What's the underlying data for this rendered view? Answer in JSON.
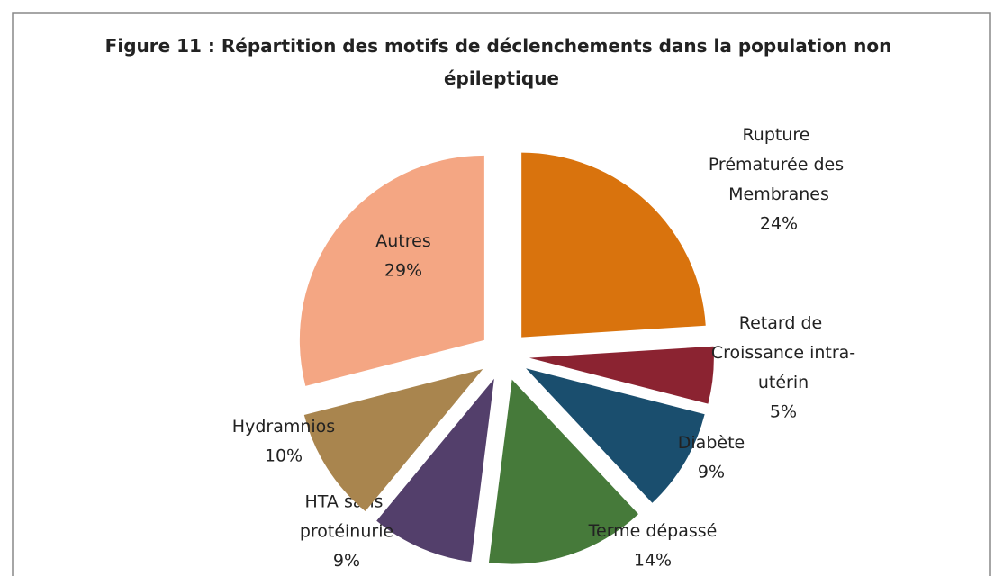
{
  "chart_data": {
    "type": "pie",
    "title": "Figure 11 : Répartition des motifs de déclenchements dans la population non épileptique",
    "categories": [
      "Rupture Prématurée des Membranes",
      "Retard de Croissance intra-utérin",
      "Diabète",
      "Terme dépassé",
      "HTA sans protéinurie",
      "Hydramnios",
      "Autres"
    ],
    "values": [
      24,
      5,
      9,
      14,
      9,
      10,
      29
    ],
    "value_labels": [
      "24%",
      "5%",
      "9%",
      "14%",
      "9%",
      "10%",
      "29%"
    ],
    "colors": [
      "#d9730d",
      "#8b2331",
      "#1a4e6e",
      "#467a3a",
      "#533f6b",
      "#a9854e",
      "#f4a683"
    ],
    "exploded": true
  }
}
